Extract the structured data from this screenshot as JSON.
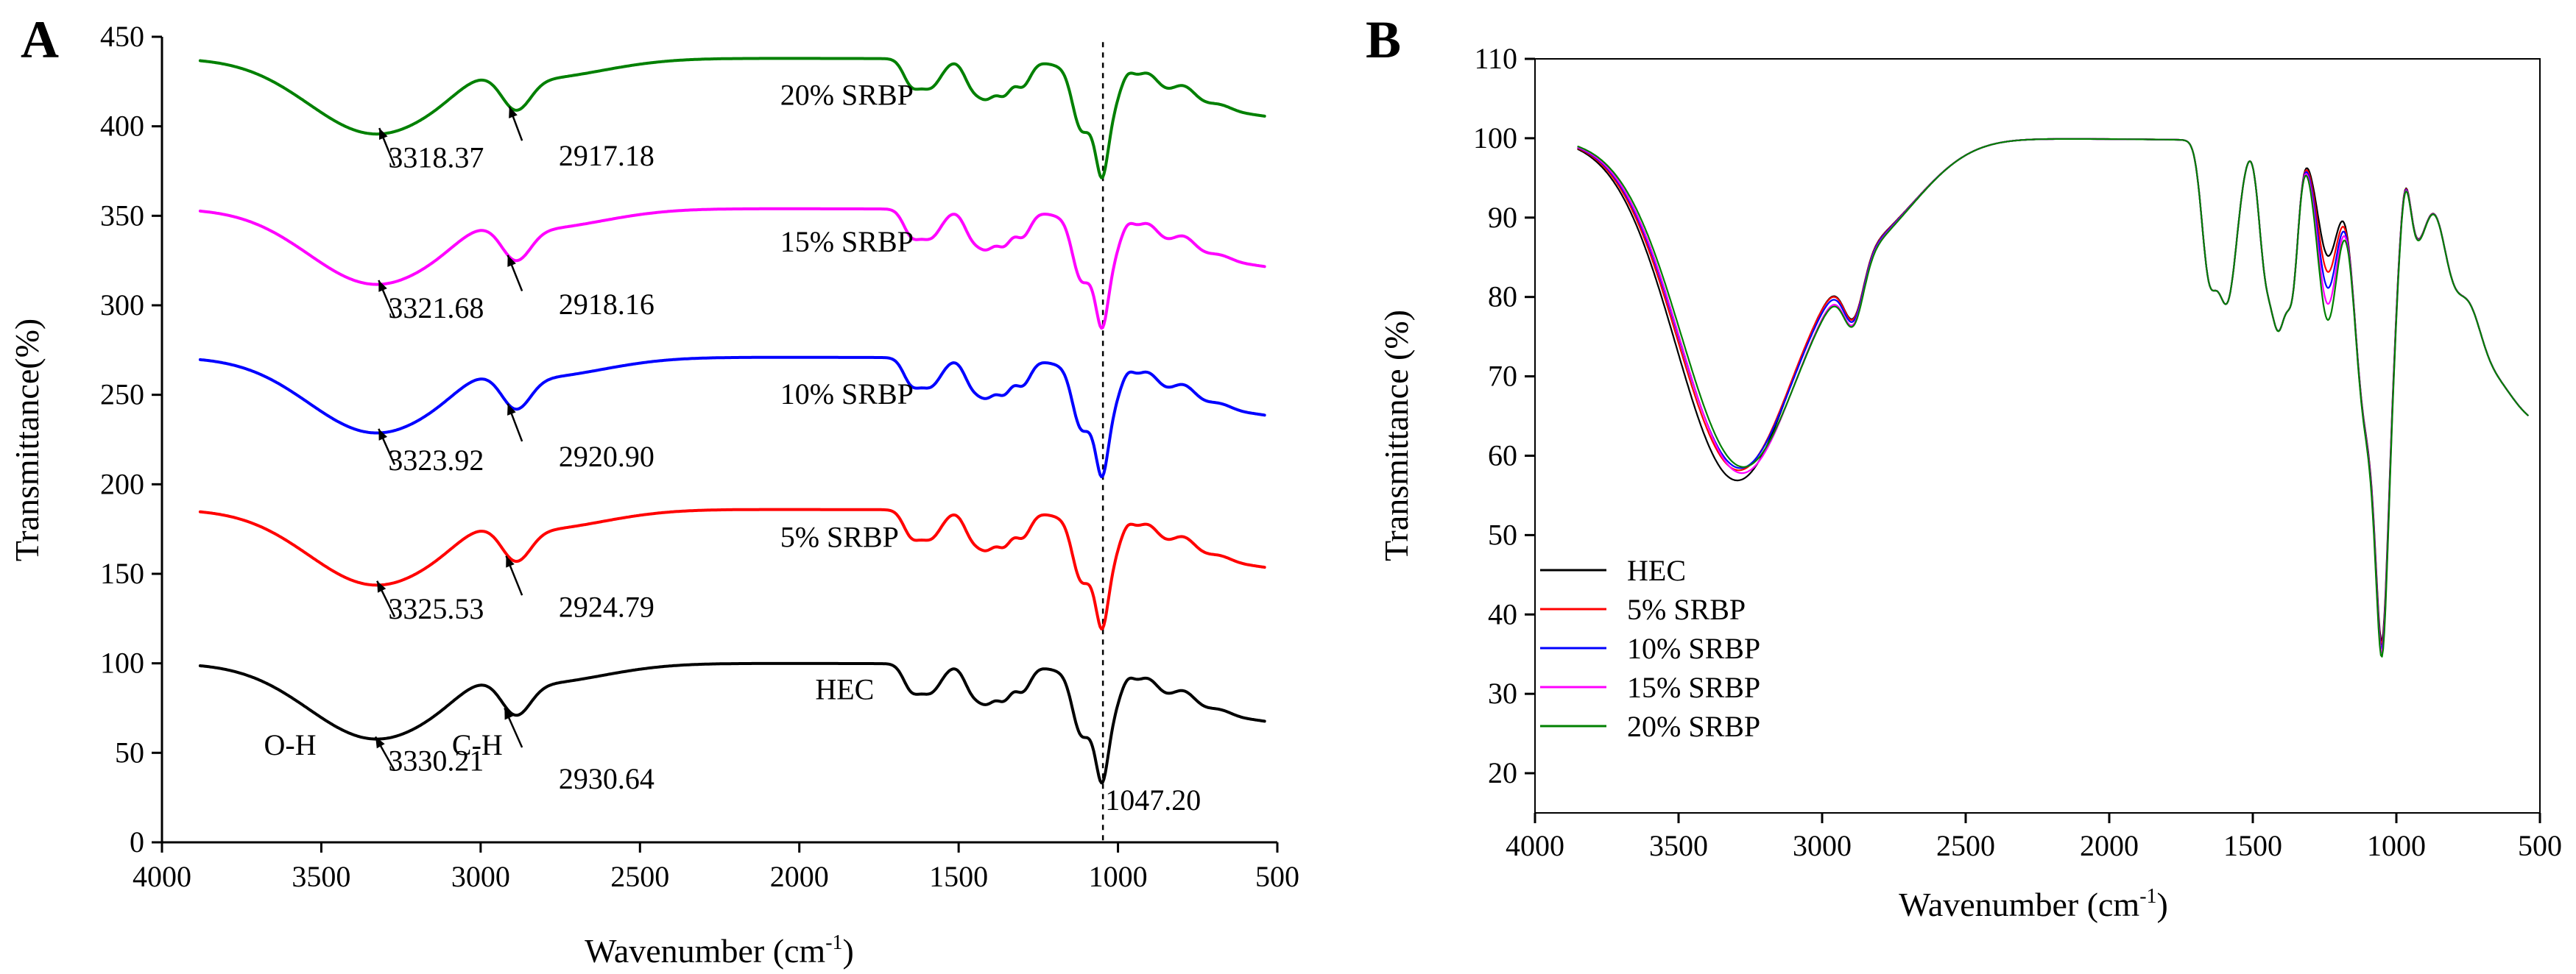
{
  "chart_data": [
    {
      "panel": "A",
      "type": "line",
      "title": "",
      "xlabel": "Wavenumber (cm",
      "xlabel_sup": "-1",
      "xlabel_close": ")",
      "ylabel": "Transmittance(%)",
      "xlim": [
        4000,
        500
      ],
      "ylim": [
        0,
        450
      ],
      "xticks": [
        4000,
        3500,
        3000,
        2500,
        2000,
        1500,
        1000,
        500
      ],
      "yticks": [
        0,
        50,
        100,
        150,
        200,
        250,
        300,
        350,
        400,
        450
      ],
      "reference_line_x": 1047.2,
      "series": [
        {
          "name": "HEC",
          "color": "#000000",
          "offset": 0,
          "label_x": 1950,
          "label_y": 80
        },
        {
          "name": "5% SRBP",
          "color": "#ff0000",
          "offset": 86,
          "label_x": 2060,
          "label_y": 165
        },
        {
          "name": "10% SRBP",
          "color": "#0000ff",
          "offset": 171,
          "label_x": 2060,
          "label_y": 245
        },
        {
          "name": "15% SRBP",
          "color": "#ff00ff",
          "offset": 254,
          "label_x": 2060,
          "label_y": 330
        },
        {
          "name": "20% SRBP",
          "color": "#008000",
          "offset": 338,
          "label_x": 2060,
          "label_y": 412
        }
      ],
      "annotations": [
        {
          "text": "3330.21",
          "arrow_from": [
            3330,
            59
          ],
          "arrow_to": [
            3270,
            40
          ],
          "text_x": 3290,
          "text_y": 40
        },
        {
          "text": "2930.64",
          "arrow_from": [
            2925,
            75
          ],
          "arrow_to": [
            2870,
            53
          ],
          "text_x": 2755,
          "text_y": 30
        },
        {
          "text": "3325.53",
          "arrow_from": [
            3325,
            146
          ],
          "arrow_to": [
            3270,
            126
          ],
          "text_x": 3290,
          "text_y": 125
        },
        {
          "text": "2924.79",
          "arrow_from": [
            2920,
            160
          ],
          "arrow_to": [
            2870,
            138
          ],
          "text_x": 2755,
          "text_y": 126
        },
        {
          "text": "3323.92",
          "arrow_from": [
            3320,
            231
          ],
          "arrow_to": [
            3270,
            211
          ],
          "text_x": 3290,
          "text_y": 208
        },
        {
          "text": "2920.90",
          "arrow_from": [
            2915,
            245
          ],
          "arrow_to": [
            2870,
            224
          ],
          "text_x": 2755,
          "text_y": 210
        },
        {
          "text": "3321.68",
          "arrow_from": [
            3320,
            314
          ],
          "arrow_to": [
            3270,
            293
          ],
          "text_x": 3290,
          "text_y": 293
        },
        {
          "text": "2918.16",
          "arrow_from": [
            2915,
            328
          ],
          "arrow_to": [
            2870,
            308
          ],
          "text_x": 2755,
          "text_y": 295
        },
        {
          "text": "3318.37",
          "arrow_from": [
            3318,
            399
          ],
          "arrow_to": [
            3270,
            378
          ],
          "text_x": 3290,
          "text_y": 377
        },
        {
          "text": "2917.18",
          "arrow_from": [
            2910,
            411
          ],
          "arrow_to": [
            2870,
            392
          ],
          "text_x": 2755,
          "text_y": 378
        }
      ],
      "band_labels": [
        {
          "text": "O-H",
          "x": 3680,
          "y": 49
        },
        {
          "text": "C-H",
          "x": 3090,
          "y": 49
        },
        {
          "text": "1047.20",
          "x": 1040,
          "y": 18
        }
      ]
    },
    {
      "panel": "B",
      "type": "line",
      "title": "",
      "xlabel": "Wavenumber (cm",
      "xlabel_sup": "-1",
      "xlabel_close": ")",
      "ylabel": "Transmittance (%)",
      "xlim": [
        4000,
        500
      ],
      "ylim": [
        15,
        110
      ],
      "xticks": [
        4000,
        3500,
        3000,
        2500,
        2000,
        1500,
        1000,
        500
      ],
      "yticks": [
        20,
        30,
        40,
        50,
        60,
        70,
        80,
        90,
        100,
        110
      ],
      "legend_position": "bottom-left",
      "series": [
        {
          "name": "HEC",
          "color": "#000000",
          "dip": 57.2
        },
        {
          "name": "5% SRBP",
          "color": "#ff0000",
          "dip": 58.5
        },
        {
          "name": "10% SRBP",
          "color": "#0000ff",
          "dip": 58.8
        },
        {
          "name": "15% SRBP",
          "color": "#ff00ff",
          "dip": 58.2
        },
        {
          "name": "20% SRBP",
          "color": "#008000",
          "dip": 59.0
        }
      ]
    }
  ],
  "panels": {
    "a_letter": "A",
    "b_letter": "B"
  }
}
